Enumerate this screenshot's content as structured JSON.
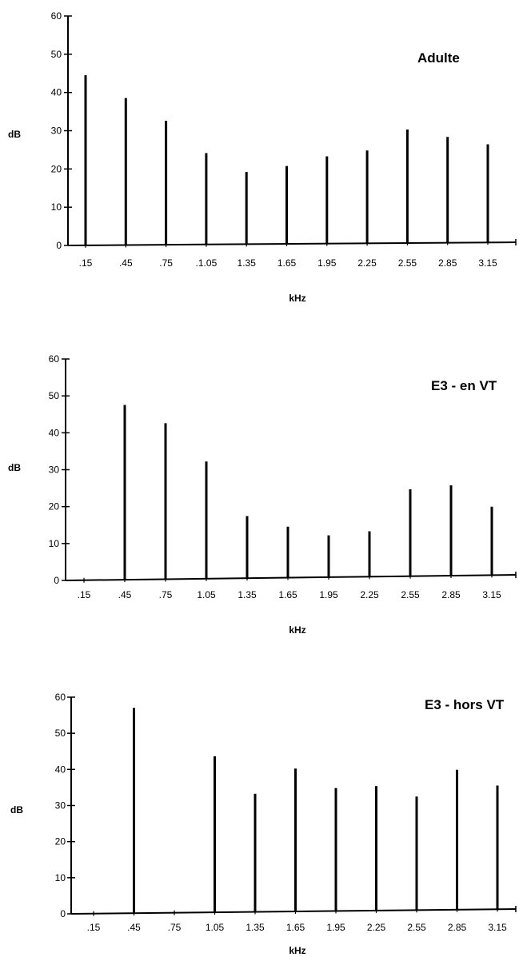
{
  "chart_data": [
    {
      "type": "bar",
      "title": "Adulte",
      "xlabel": "kHz",
      "ylabel": "dB",
      "ylim": [
        0,
        60
      ],
      "yticks": [
        "0",
        "10",
        "20",
        "30",
        "40",
        "50",
        "60"
      ],
      "categories": [
        ".15",
        ".45",
        ".75",
        ".1.05",
        "1.35",
        "1.65",
        "1.95",
        "2.25",
        "2.55",
        "2.85",
        "3.15"
      ],
      "values": [
        44.5,
        38.5,
        32.5,
        24,
        19,
        20.5,
        23,
        24.5,
        30,
        28,
        26
      ],
      "grid": false,
      "legend": "none"
    },
    {
      "type": "bar",
      "title": "E3  -  en  VT",
      "xlabel": "kHz",
      "ylabel": "dB",
      "ylim": [
        0,
        60
      ],
      "yticks": [
        "0",
        "10",
        "20",
        "30",
        "40",
        "50",
        "60"
      ],
      "categories": [
        ".15",
        ".45",
        ".75",
        "1.05",
        "1.35",
        "1.65",
        "1.95",
        "2.25",
        "2.55",
        "2.85",
        "3.15"
      ],
      "values": [
        0,
        47.5,
        42.5,
        32,
        17,
        14,
        11.5,
        12.5,
        24,
        25,
        19
      ],
      "grid": false,
      "legend": "none"
    },
    {
      "type": "bar",
      "title": "E3  -  hors  VT",
      "xlabel": "kHz",
      "ylabel": "dB",
      "ylim": [
        0,
        60
      ],
      "yticks": [
        "0",
        "10",
        "20",
        "30",
        "40",
        "50",
        "60"
      ],
      "categories": [
        ".15",
        ".45",
        ".75",
        "1.05",
        "1.35",
        "1.65",
        "1.95",
        "2.25",
        "2.55",
        "2.85",
        "3.15"
      ],
      "values": [
        0,
        57,
        0,
        43.5,
        33,
        40,
        34.5,
        35,
        32,
        39.5,
        35
      ],
      "grid": false,
      "legend": "none"
    }
  ]
}
